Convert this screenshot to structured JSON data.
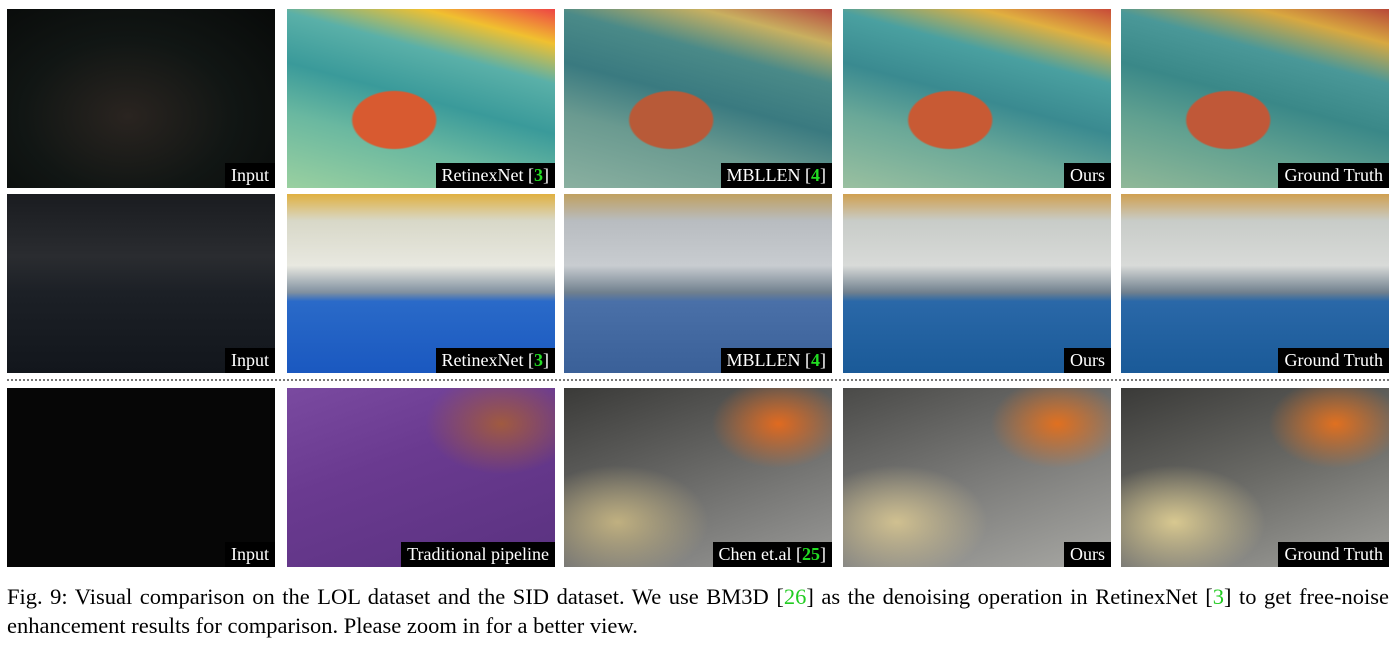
{
  "figure": {
    "rows": [
      {
        "panels": [
          {
            "label": [
              {
                "t": "Input"
              }
            ]
          },
          {
            "label": [
              {
                "t": "RetinexNet ["
              },
              {
                "t": "3",
                "ref": true
              },
              {
                "t": "]"
              }
            ]
          },
          {
            "label": [
              {
                "t": "MBLLEN ["
              },
              {
                "t": "4",
                "ref": true
              },
              {
                "t": "]"
              }
            ]
          },
          {
            "label": [
              {
                "t": "Ours"
              }
            ]
          },
          {
            "label": [
              {
                "t": "Ground Truth"
              }
            ]
          }
        ]
      },
      {
        "panels": [
          {
            "label": [
              {
                "t": "Input"
              }
            ]
          },
          {
            "label": [
              {
                "t": "RetinexNet ["
              },
              {
                "t": "3",
                "ref": true
              },
              {
                "t": "]"
              }
            ]
          },
          {
            "label": [
              {
                "t": "MBLLEN ["
              },
              {
                "t": "4",
                "ref": true
              },
              {
                "t": "]"
              }
            ]
          },
          {
            "label": [
              {
                "t": "Ours"
              }
            ]
          },
          {
            "label": [
              {
                "t": "Ground Truth"
              }
            ]
          }
        ]
      },
      {
        "panels": [
          {
            "label": [
              {
                "t": "Input"
              }
            ]
          },
          {
            "label": [
              {
                "t": "Traditional pipeline"
              }
            ]
          },
          {
            "label": [
              {
                "t": "Chen et.al ["
              },
              {
                "t": "25",
                "ref": true
              },
              {
                "t": "]"
              }
            ]
          },
          {
            "label": [
              {
                "t": "Ours"
              }
            ]
          },
          {
            "label": [
              {
                "t": "Ground Truth"
              }
            ]
          }
        ]
      }
    ],
    "caption": [
      {
        "t": "Fig. 9: Visual comparison on the LOL dataset and the SID dataset. We use BM3D ["
      },
      {
        "t": "26",
        "ref": true
      },
      {
        "t": "] as the denoising operation in RetinexNet ["
      },
      {
        "t": "3",
        "ref": true
      },
      {
        "t": "] to get free-noise enhancement results for comparison. Please zoom in for a better view."
      }
    ]
  }
}
